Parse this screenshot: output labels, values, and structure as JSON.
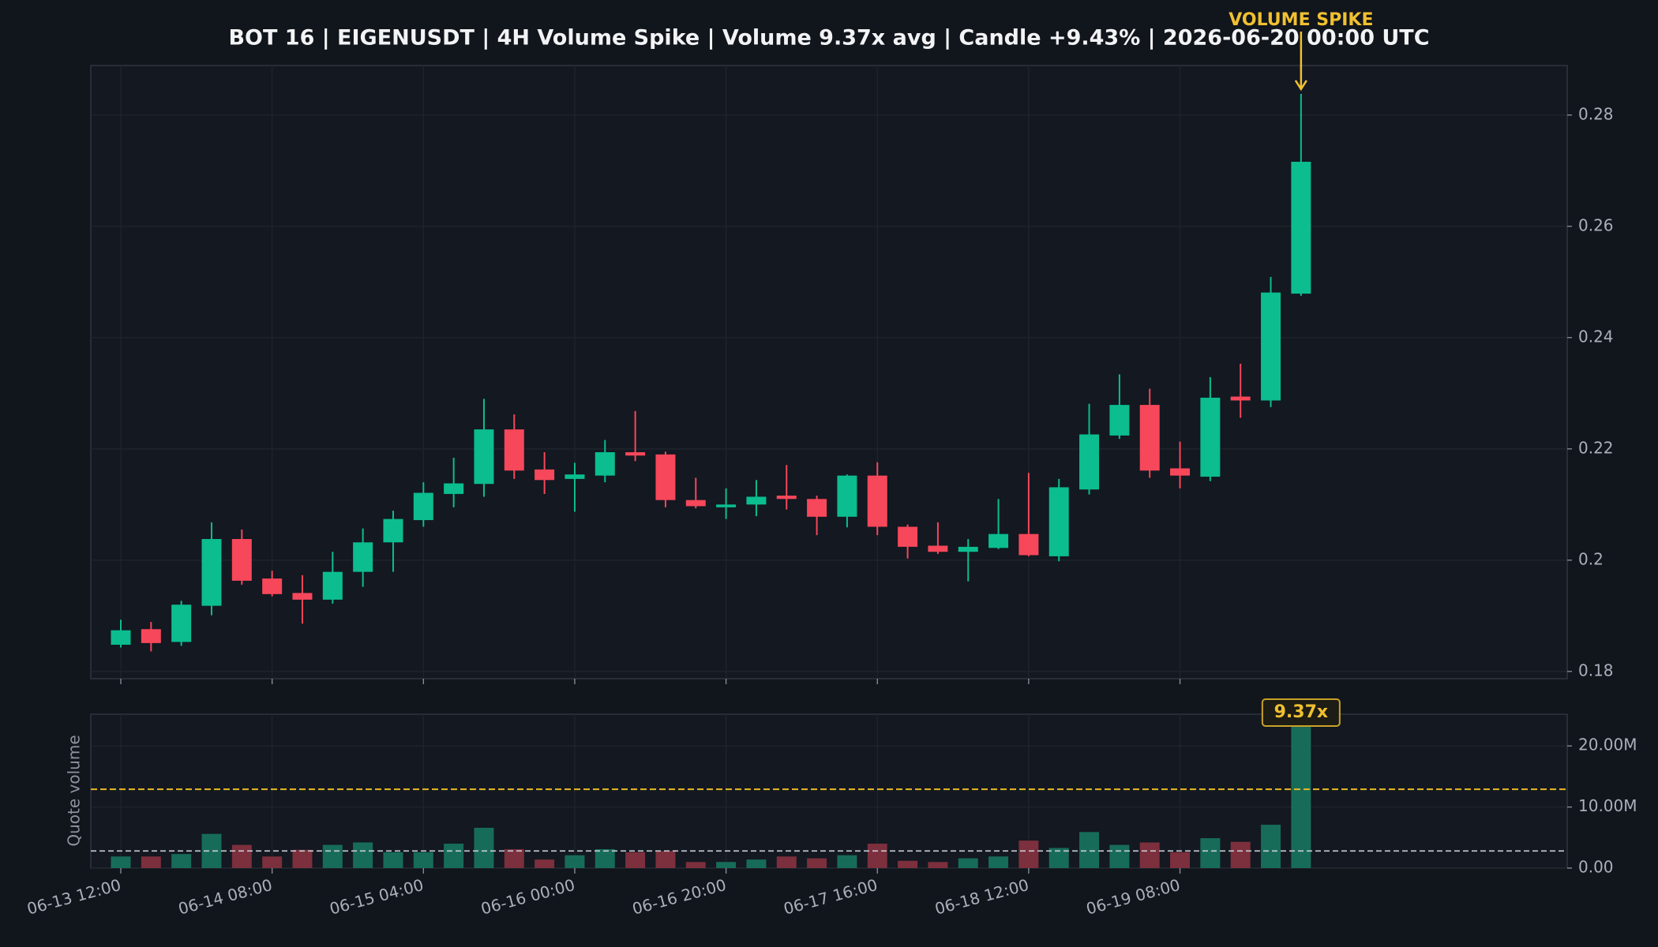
{
  "chart_data": [
    {
      "type": "candlestick",
      "title": "BOT 16 | EIGENUSDT | 4H Volume Spike | Volume 9.37x avg | Candle +9.43% | 2026-06-20 00:00 UTC",
      "annotation": "VOLUME SPIKE",
      "up_color": "#0bbd8f",
      "down_color": "#f7475a",
      "annotation_color": "#f0c030",
      "open": [
        0.1848,
        0.1876,
        0.1853,
        0.1918,
        0.2038,
        0.1967,
        0.1941,
        0.1929,
        0.1979,
        0.2032,
        0.2072,
        0.2119,
        0.2137,
        0.2235,
        0.2163,
        0.2146,
        0.2152,
        0.2194,
        0.219,
        0.2108,
        0.2095,
        0.21,
        0.2116,
        0.211,
        0.2078,
        0.2152,
        0.206,
        0.2026,
        0.2015,
        0.2022,
        0.2047,
        0.2007,
        0.2127,
        0.2224,
        0.2279,
        0.2165,
        0.215,
        0.2294,
        0.2287,
        0.2479
      ],
      "high": [
        0.1893,
        0.1889,
        0.1927,
        0.2068,
        0.2055,
        0.1981,
        0.1973,
        0.2015,
        0.2057,
        0.2089,
        0.214,
        0.2184,
        0.229,
        0.2262,
        0.2194,
        0.2175,
        0.2216,
        0.2268,
        0.2195,
        0.2148,
        0.2129,
        0.2144,
        0.2171,
        0.2116,
        0.2154,
        0.2176,
        0.2064,
        0.2068,
        0.2038,
        0.211,
        0.2157,
        0.2146,
        0.2281,
        0.2334,
        0.2308,
        0.2213,
        0.2329,
        0.2353,
        0.2509,
        0.2838
      ],
      "low": [
        0.1843,
        0.1836,
        0.1846,
        0.1901,
        0.1956,
        0.1935,
        0.1886,
        0.1922,
        0.1952,
        0.1979,
        0.206,
        0.2095,
        0.2114,
        0.2146,
        0.2119,
        0.2087,
        0.214,
        0.2178,
        0.2095,
        0.2093,
        0.2074,
        0.2079,
        0.2091,
        0.2045,
        0.2059,
        0.2045,
        0.2003,
        0.2011,
        0.1962,
        0.202,
        0.2007,
        0.1998,
        0.2118,
        0.2218,
        0.2148,
        0.2129,
        0.2142,
        0.2256,
        0.2275,
        0.2475
      ],
      "close": [
        0.1874,
        0.1851,
        0.192,
        0.2038,
        0.1963,
        0.1939,
        0.1929,
        0.1979,
        0.2032,
        0.2074,
        0.2121,
        0.2138,
        0.2235,
        0.2161,
        0.2144,
        0.2154,
        0.2194,
        0.2188,
        0.2108,
        0.2097,
        0.21,
        0.2114,
        0.211,
        0.2078,
        0.2152,
        0.206,
        0.2024,
        0.2015,
        0.2024,
        0.2047,
        0.2009,
        0.2131,
        0.2226,
        0.2279,
        0.2161,
        0.2152,
        0.2292,
        0.2287,
        0.2481,
        0.2716
      ],
      "ylim": [
        0.1787,
        0.2889
      ],
      "yticks": [
        0.18,
        0.2,
        0.22,
        0.24,
        0.26,
        0.28
      ],
      "grid": true
    },
    {
      "type": "bar",
      "ylabel": "Quote volume",
      "spike_label": "9.37x",
      "up_color": "#176c59",
      "down_color": "#7c2f3c",
      "categories": [
        "06-13 12:00",
        null,
        null,
        null,
        null,
        "06-14 08:00",
        null,
        null,
        null,
        null,
        "06-15 04:00",
        null,
        null,
        null,
        null,
        "06-16 00:00",
        null,
        null,
        null,
        null,
        "06-16 20:00",
        null,
        null,
        null,
        null,
        "06-17 16:00",
        null,
        null,
        null,
        null,
        "06-18 12:00",
        null,
        null,
        null,
        null,
        "06-19 08:00",
        null,
        null,
        null,
        null
      ],
      "values": [
        1900000,
        1900000,
        2300000,
        5600000,
        3800000,
        1900000,
        3000000,
        3800000,
        4200000,
        2600000,
        2600000,
        4000000,
        6600000,
        3100000,
        1400000,
        2100000,
        3100000,
        2600000,
        2800000,
        1000000,
        1000000,
        1400000,
        1900000,
        1600000,
        2100000,
        4000000,
        1200000,
        1000000,
        1600000,
        1900000,
        4500000,
        3300000,
        5900000,
        3800000,
        4200000,
        2600000,
        4900000,
        4300000,
        7100000,
        26200000
      ],
      "avg_volume": 2800000,
      "avg_color": "#c8ccd4",
      "threshold": 12900000,
      "threshold_color": "#e8b923",
      "ylim": [
        0,
        25200000
      ],
      "yticks": [
        {
          "value": 0,
          "label": "0.00"
        },
        {
          "value": 10000000,
          "label": "10.00M"
        },
        {
          "value": 20000000,
          "label": "20.00M"
        }
      ],
      "grid": true
    }
  ]
}
